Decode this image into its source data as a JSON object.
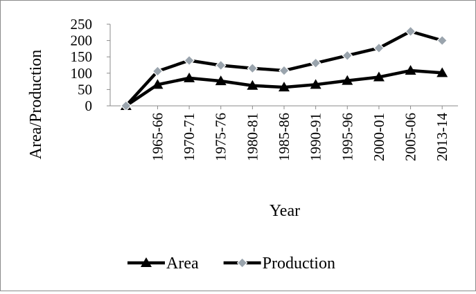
{
  "chart_data": {
    "type": "line",
    "categories": [
      "",
      "1965-66",
      "1970-71",
      "1975-76",
      "1980-81",
      "1985-86",
      "1990-91",
      "1995-96",
      "2000-01",
      "2005-06",
      "2013-14"
    ],
    "series": [
      {
        "name": "Area",
        "marker": "triangle",
        "color": "#000000",
        "values": [
          0,
          65,
          85,
          76,
          62,
          57,
          65,
          77,
          88,
          108,
          101
        ]
      },
      {
        "name": "Production",
        "marker": "diamond",
        "color": "#000000",
        "values": [
          0,
          106,
          139,
          124,
          115,
          108,
          131,
          154,
          177,
          228,
          200
        ]
      }
    ],
    "xlabel": "Year",
    "ylabel": "Area/Production",
    "ylim": [
      0,
      250
    ],
    "yticks": [
      0,
      50,
      100,
      150,
      200,
      250
    ],
    "grid": false,
    "legend": "bottom"
  }
}
